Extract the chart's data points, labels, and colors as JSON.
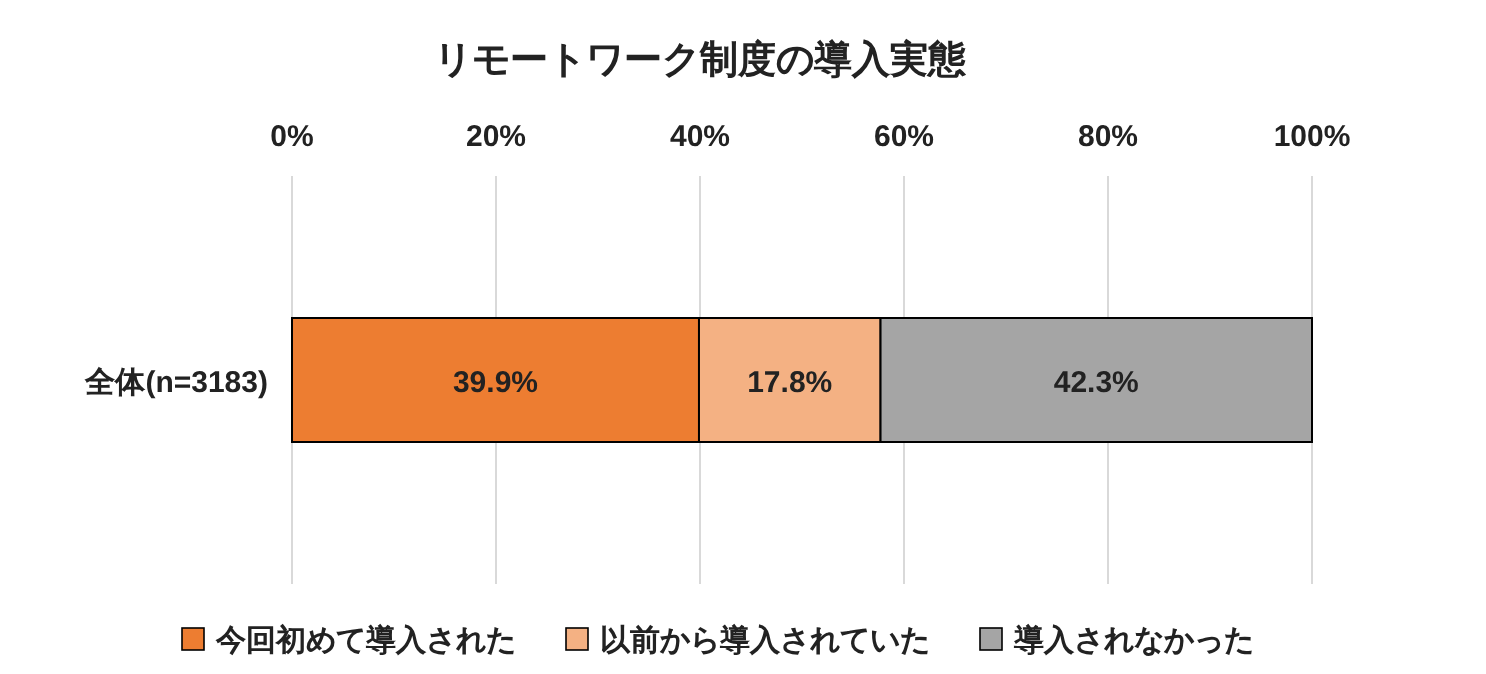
{
  "chart_data": {
    "type": "bar",
    "orientation": "horizontal",
    "stacked": true,
    "title": "リモートワーク制度の導入実態",
    "categories": [
      "全体(n=3183)"
    ],
    "series": [
      {
        "name": "今回初めて導入された",
        "color": "#ed7d31",
        "values": [
          39.9
        ],
        "value_labels": [
          "39.9%"
        ]
      },
      {
        "name": "以前から導入されていた",
        "color": "#f4b183",
        "values": [
          17.8
        ],
        "value_labels": [
          "17.8%"
        ]
      },
      {
        "name": "導入されなかった",
        "color": "#a5a5a5",
        "values": [
          42.3
        ],
        "value_labels": [
          "42.3%"
        ]
      }
    ],
    "xlim": [
      0,
      100
    ],
    "xticks": [
      {
        "value": 0,
        "label": "0%"
      },
      {
        "value": 20,
        "label": "20%"
      },
      {
        "value": 40,
        "label": "40%"
      },
      {
        "value": 60,
        "label": "60%"
      },
      {
        "value": 80,
        "label": "80%"
      },
      {
        "value": 100,
        "label": "100%"
      }
    ],
    "grid": "x",
    "legend": "bottom"
  }
}
